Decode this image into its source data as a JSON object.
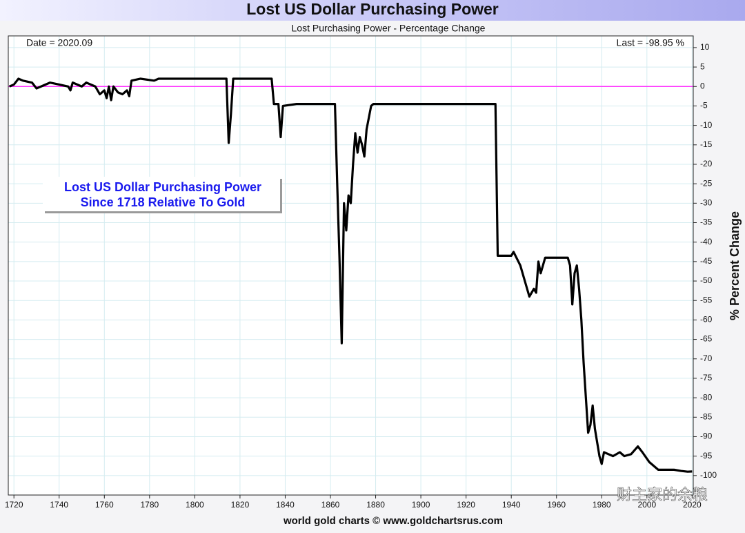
{
  "chart_data": {
    "type": "line",
    "title": "Lost US Dollar Purchasing Power",
    "subtitle": "Lost Purchasing Power - Percentage Change",
    "y_label": "% Percent Change",
    "date_note": "Date = 2020.09",
    "last_note": "Last = -98.95 %",
    "box_lines": [
      "Lost US Dollar Purchasing Power",
      "Since 1718 Relative To Gold"
    ],
    "footer": "world gold charts © www.goldchartsrus.com",
    "watermark": "财主家的余粮",
    "xlim": [
      1717.5,
      2020.5
    ],
    "ylim": [
      -105,
      13
    ],
    "xticks": [
      1720,
      1740,
      1760,
      1780,
      1800,
      1820,
      1840,
      1860,
      1880,
      1900,
      1920,
      1940,
      1960,
      1980,
      2000,
      2020
    ],
    "yticks": [
      10,
      5,
      0,
      -5,
      -10,
      -15,
      -20,
      -25,
      -30,
      -35,
      -40,
      -45,
      -50,
      -55,
      -60,
      -65,
      -70,
      -75,
      -80,
      -85,
      -90,
      -95,
      -100
    ],
    "grid": true,
    "zero_line_color": "#ff33ff",
    "series": [
      {
        "name": "Lost Purchasing Power",
        "color": "#000000",
        "x": [
          1718,
          1720,
          1722,
          1724,
          1728,
          1730,
          1732,
          1736,
          1740,
          1744,
          1745,
          1746,
          1750,
          1752,
          1756,
          1758,
          1760,
          1761,
          1762,
          1763,
          1764,
          1766,
          1768,
          1770,
          1771,
          1772,
          1776,
          1782,
          1784,
          1800,
          1814,
          1815,
          1816,
          1817,
          1834,
          1835,
          1837,
          1838,
          1839,
          1845,
          1862,
          1863,
          1864,
          1865,
          1866,
          1867,
          1868,
          1869,
          1870,
          1871,
          1872,
          1873,
          1874,
          1875,
          1876,
          1878,
          1879,
          1933,
          1934,
          1940,
          1941,
          1944,
          1946,
          1948,
          1950,
          1951,
          1952,
          1953,
          1955,
          1960,
          1965,
          1966,
          1967,
          1968,
          1969,
          1970,
          1971,
          1972,
          1973,
          1974,
          1975,
          1976,
          1977,
          1979,
          1980,
          1981,
          1983,
          1985,
          1988,
          1990,
          1993,
          1996,
          1998,
          2001,
          2005,
          2010,
          2012,
          2015,
          2018,
          2020
        ],
        "values": [
          0,
          0.5,
          2,
          1.5,
          1,
          -0.5,
          0,
          1,
          0.5,
          0,
          -1,
          1,
          0,
          1,
          0,
          -2,
          -1,
          -3,
          0,
          -3.5,
          0,
          -1.5,
          -2,
          -1,
          -2.5,
          1.5,
          2,
          1.5,
          2,
          2,
          2,
          -14.5,
          -7,
          2,
          2,
          -4.5,
          -4.5,
          -13,
          -5,
          -4.5,
          -4.5,
          -25,
          -44,
          -66,
          -30,
          -37,
          -28,
          -30,
          -20,
          -12,
          -17,
          -13,
          -15,
          -18,
          -11,
          -5,
          -4.5,
          -4.5,
          -43.5,
          -43.5,
          -42.5,
          -46,
          -50,
          -54,
          -52,
          -53,
          -45,
          -48,
          -44,
          -44,
          -44,
          -46,
          -56,
          -48,
          -46,
          -52,
          -60,
          -71,
          -80,
          -89,
          -87,
          -82,
          -88,
          -95,
          -97,
          -94,
          -94.5,
          -95,
          -94,
          -95,
          -94.5,
          -92.5,
          -94,
          -96.5,
          -98.5,
          -98.5,
          -98.5,
          -98.8,
          -99,
          -98.95
        ]
      }
    ]
  }
}
